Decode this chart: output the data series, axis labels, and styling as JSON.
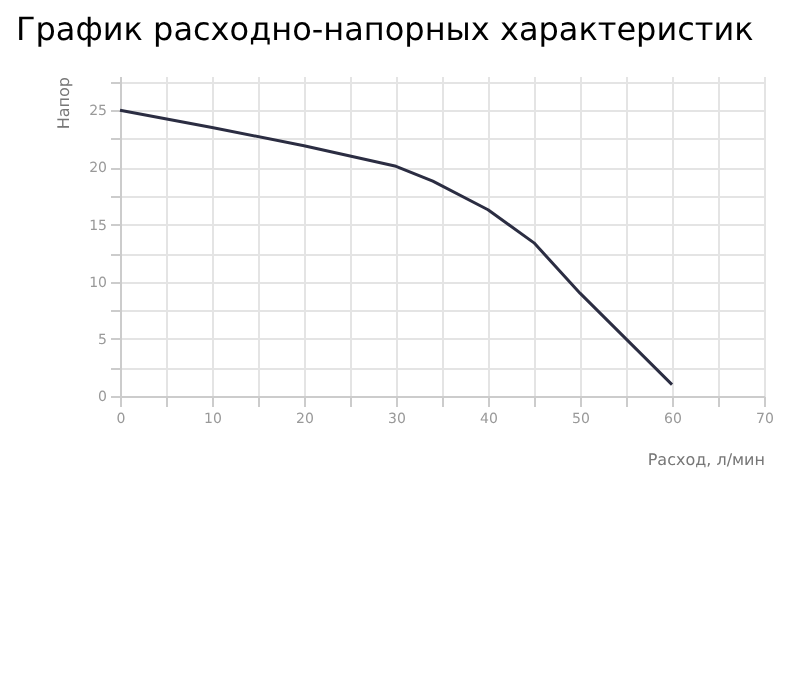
{
  "chart_data": {
    "type": "line",
    "title": "График расходно-напорных характеристик",
    "xlabel": "Расход, л/мин",
    "ylabel": "Напор",
    "x": [
      0,
      10,
      20,
      30,
      34,
      40,
      45,
      50,
      55,
      60
    ],
    "series": [
      {
        "color": "#2b2d42",
        "values": [
          25,
          23.5,
          21.9,
          20.1,
          18.8,
          16.3,
          13.4,
          9,
          5,
          1
        ]
      }
    ],
    "xlim": [
      0,
      70
    ],
    "ylim": [
      0,
      28
    ],
    "xticks": [
      0,
      {
        "value": 5,
        "label": null
      },
      10,
      {
        "value": 15,
        "label": null
      },
      20,
      {
        "value": 25,
        "label": null
      },
      30,
      {
        "value": 35,
        "label": null
      },
      40,
      {
        "value": 45,
        "label": null
      },
      50,
      {
        "value": 55,
        "label": null
      },
      60,
      {
        "value": 65,
        "label": null
      },
      70
    ],
    "yticks": [
      0,
      {
        "value": 2.5,
        "label": null
      },
      5,
      {
        "value": 7.5,
        "label": null
      },
      10,
      {
        "value": 12.5,
        "label": null
      },
      15,
      {
        "value": 17.5,
        "label": null
      },
      20,
      {
        "value": 22.5,
        "label": null
      },
      25,
      {
        "value": 27.5,
        "label": null
      }
    ],
    "grid": true,
    "marker": "none",
    "line_style": "solid"
  }
}
